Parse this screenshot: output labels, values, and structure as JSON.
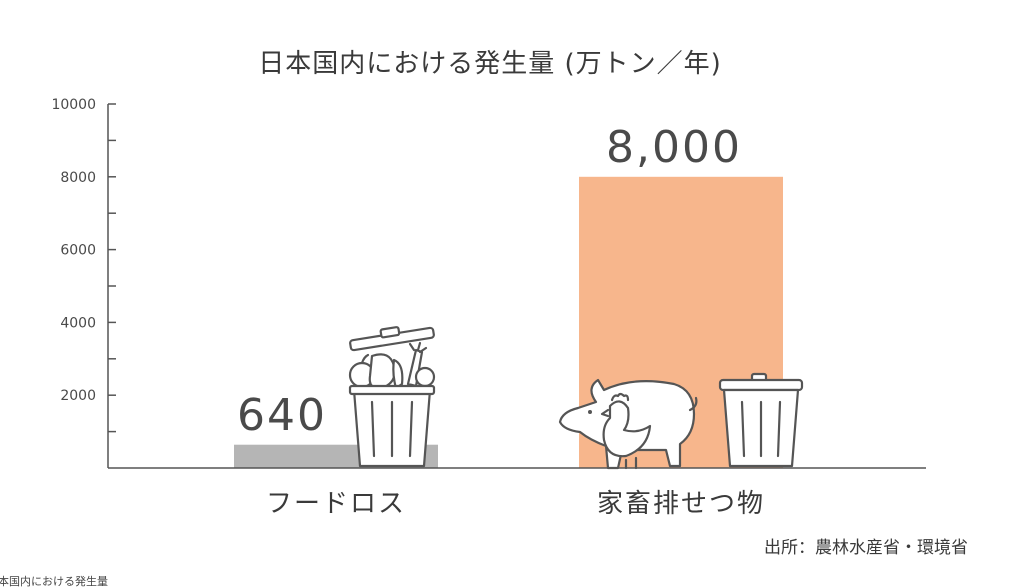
{
  "chart_data": {
    "type": "bar",
    "title": "日本国内における発生量 (万トン／年)",
    "categories": [
      "フードロス",
      "家畜排せつ物"
    ],
    "values": [
      640,
      8000
    ],
    "data_labels": [
      "640",
      "8,000"
    ],
    "ylim": [
      0,
      10000
    ],
    "y_ticks": [
      2000,
      4000,
      6000,
      8000,
      10000
    ],
    "y_tick_labels": [
      "2000",
      "4000",
      "6000",
      "8000",
      "10000"
    ],
    "y_minor_step": 1000,
    "xlabel": "",
    "ylabel": "",
    "grid": false,
    "bar_colors": [
      "#b5b5b5",
      "#f7b68c"
    ]
  },
  "footer": {
    "source": "出所：農林水産省・環境省",
    "cut_caption": "本国内における発生量"
  },
  "icons": {
    "food_loss": "trash-bin-with-food-icon",
    "livestock": "pig-and-chicken-icon",
    "livestock_bin": "trash-bin-icon"
  }
}
